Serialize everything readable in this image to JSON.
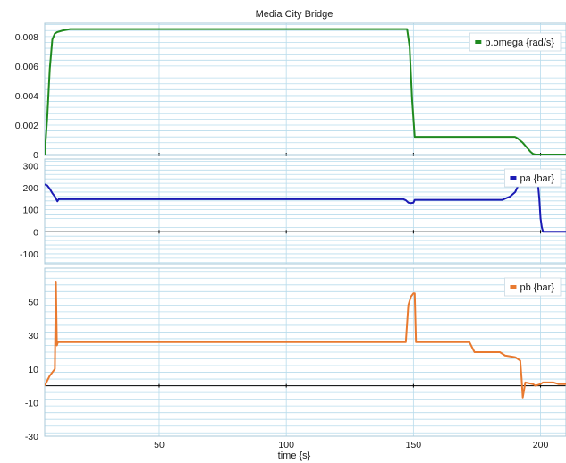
{
  "chart_data": [
    {
      "type": "line",
      "title": "Media City Bridge",
      "xlabel": "",
      "xlim": [
        5,
        210
      ],
      "ylim": [
        0,
        0.0089
      ],
      "yticks": [
        0,
        0.002,
        0.004,
        0.006,
        0.008
      ],
      "ytick_labels": [
        "0",
        "0.002",
        "0.004",
        "0.006",
        "0.008"
      ],
      "grid": true,
      "legend_position": "top-right",
      "series": [
        {
          "name": "p.omega {rad/s}",
          "color": "#1f8a1f",
          "x": [
            5,
            6,
            7,
            8,
            9,
            10,
            12,
            15,
            20,
            147.5,
            148.5,
            149.5,
            150.5,
            190,
            191,
            193,
            195,
            196,
            197,
            198,
            210
          ],
          "y": [
            0,
            0.0025,
            0.0058,
            0.0078,
            0.0082,
            0.0083,
            0.0084,
            0.0085,
            0.0085,
            0.0085,
            0.0073,
            0.0037,
            0.0012,
            0.0012,
            0.0011,
            0.0008,
            0.0004,
            0.0002,
            5e-05,
            0,
            0
          ]
        }
      ]
    },
    {
      "type": "line",
      "xlabel": "",
      "xlim": [
        5,
        210
      ],
      "ylim": [
        -145,
        330
      ],
      "yticks": [
        -100,
        0,
        100,
        200,
        300
      ],
      "ytick_labels": [
        "-100",
        "0",
        "100",
        "200",
        "300"
      ],
      "grid": true,
      "legend_position": "top-right",
      "series": [
        {
          "name": "pa {bar}",
          "color": "#1a1ab4",
          "x": [
            5,
            6,
            7,
            8,
            9,
            10,
            10.5,
            11,
            146,
            147,
            148,
            149,
            150,
            150.5,
            175,
            185,
            188,
            190,
            191,
            192,
            193,
            195,
            198,
            199,
            199.5,
            200,
            200.5,
            201,
            210
          ],
          "y": [
            215,
            210,
            195,
            175,
            160,
            138,
            148,
            148,
            148,
            143,
            132,
            130,
            132,
            145,
            145,
            145,
            160,
            180,
            205,
            212,
            218,
            220,
            225,
            215,
            150,
            60,
            20,
            0,
            0
          ]
        }
      ]
    },
    {
      "type": "line",
      "xlabel": "time {s}",
      "xlim": [
        5,
        210
      ],
      "ylim": [
        -30,
        70
      ],
      "yticks": [
        -30,
        -10,
        10,
        30,
        50
      ],
      "ytick_labels": [
        "-30",
        "-10",
        "10",
        "30",
        "50"
      ],
      "xticks": [
        50,
        100,
        150,
        200
      ],
      "xtick_labels": [
        "50",
        "100",
        "150",
        "200"
      ],
      "grid": true,
      "legend_position": "top-right",
      "series": [
        {
          "name": "pb {bar}",
          "color": "#e87a30",
          "x": [
            5,
            6,
            7,
            8,
            9,
            9.4,
            9.8,
            10.2,
            11,
            12,
            146,
            147,
            148,
            149,
            150,
            150.5,
            151,
            172,
            174,
            180,
            184,
            186,
            190,
            192,
            192.5,
            193,
            194,
            197,
            198,
            200,
            201,
            205,
            207,
            210
          ],
          "y": [
            0,
            3,
            6,
            8,
            10,
            62,
            24,
            26,
            26,
            26,
            26,
            26,
            48,
            53,
            55,
            55,
            26,
            26,
            20,
            20,
            20,
            18,
            17,
            15,
            5,
            -7,
            2,
            1,
            0,
            1,
            2,
            2,
            1,
            1
          ]
        }
      ]
    }
  ]
}
